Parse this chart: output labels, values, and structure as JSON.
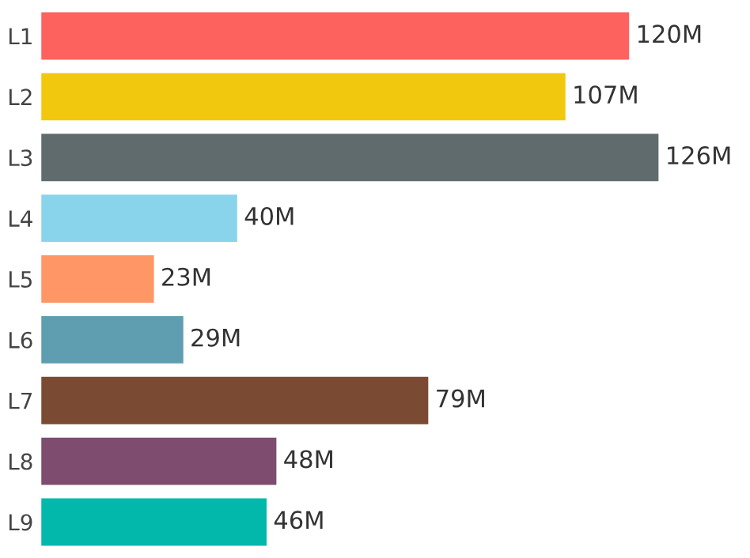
{
  "chart_data": {
    "type": "bar",
    "orientation": "horizontal",
    "categories": [
      "L1",
      "L2",
      "L3",
      "L4",
      "L5",
      "L6",
      "L7",
      "L8",
      "L9"
    ],
    "values": [
      120,
      107,
      126,
      40,
      23,
      29,
      79,
      48,
      46
    ],
    "colors": [
      "#fd625e",
      "#f2c80f",
      "#5f6b6d",
      "#8ad4eb",
      "#fe9666",
      "#5f9eb0",
      "#7b4a32",
      "#7e4c6f",
      "#01b8aa"
    ],
    "value_labels": [
      "120M",
      "107M",
      "126M",
      "40M",
      "23M",
      "29M",
      "79M",
      "48M",
      "46M"
    ],
    "grid": false,
    "legend": false
  }
}
